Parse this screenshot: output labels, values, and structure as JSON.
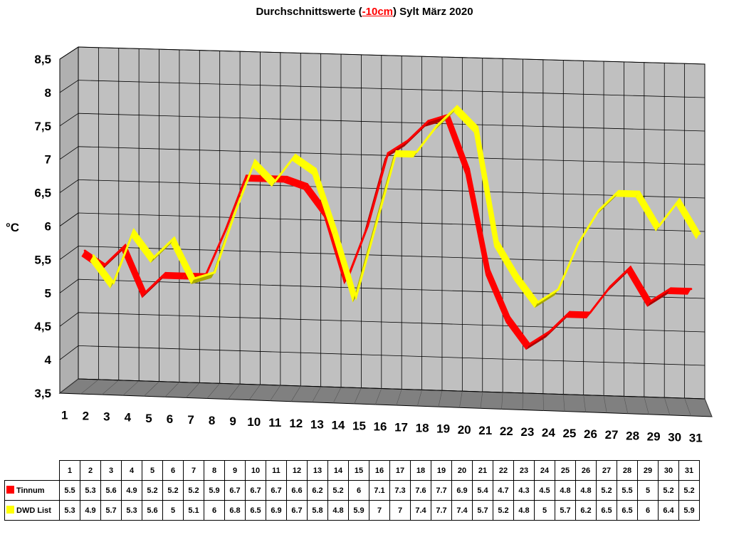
{
  "chart_data": {
    "type": "line",
    "title_parts": [
      "Durchschnittswerte (",
      "-10cm",
      ") Sylt März 2020"
    ],
    "ylabel": "°C",
    "xlabel": "",
    "ylim": [
      3.5,
      8.5
    ],
    "y_ticks": [
      "3,5",
      "4",
      "4,5",
      "5",
      "5,5",
      "6",
      "6,5",
      "7",
      "7,5",
      "8",
      "8,5"
    ],
    "categories": [
      "1",
      "2",
      "3",
      "4",
      "5",
      "6",
      "7",
      "8",
      "9",
      "10",
      "11",
      "12",
      "13",
      "14",
      "15",
      "16",
      "17",
      "18",
      "19",
      "20",
      "21",
      "22",
      "23",
      "24",
      "25",
      "26",
      "27",
      "28",
      "29",
      "30",
      "31"
    ],
    "grid": true,
    "legend": "table-bottom",
    "series": [
      {
        "name": "Tinnum",
        "color": "#ff0000",
        "values": [
          5.5,
          5.3,
          5.6,
          4.9,
          5.2,
          5.2,
          5.2,
          5.9,
          6.7,
          6.7,
          6.7,
          6.6,
          6.2,
          5.2,
          6,
          7.1,
          7.3,
          7.6,
          7.7,
          6.9,
          5.4,
          4.7,
          4.3,
          4.5,
          4.8,
          4.8,
          5.2,
          5.5,
          5,
          5.2,
          5.2
        ],
        "labels": [
          "5.5",
          "5.3",
          "5.6",
          "4.9",
          "5.2",
          "5.2",
          "5.2",
          "5.9",
          "6.7",
          "6.7",
          "6.7",
          "6.6",
          "6.2",
          "5.2",
          "6",
          "7.1",
          "7.3",
          "7.6",
          "7.7",
          "6.9",
          "5.4",
          "4.7",
          "4.3",
          "4.5",
          "4.8",
          "4.8",
          "5.2",
          "5.5",
          "5",
          "5.2",
          "5.2"
        ]
      },
      {
        "name": "DWD List",
        "color": "#ffff00",
        "values": [
          5.3,
          4.9,
          5.7,
          5.3,
          5.6,
          5,
          5.1,
          6,
          6.8,
          6.5,
          6.9,
          6.7,
          5.8,
          4.8,
          5.9,
          7,
          7,
          7.4,
          7.7,
          7.4,
          5.7,
          5.2,
          4.8,
          5,
          5.7,
          6.2,
          6.5,
          6.5,
          6,
          6.4,
          5.9
        ],
        "labels": [
          "5.3",
          "4.9",
          "5.7",
          "5.3",
          "5.6",
          "5",
          "5.1",
          "6",
          "6.8",
          "6.5",
          "6.9",
          "6.7",
          "5.8",
          "4.8",
          "5.9",
          "7",
          "7",
          "7.4",
          "7.7",
          "7.4",
          "5.7",
          "5.2",
          "4.8",
          "5",
          "5.7",
          "6.2",
          "6.5",
          "6.5",
          "6",
          "6.4",
          "5.9"
        ]
      }
    ]
  }
}
